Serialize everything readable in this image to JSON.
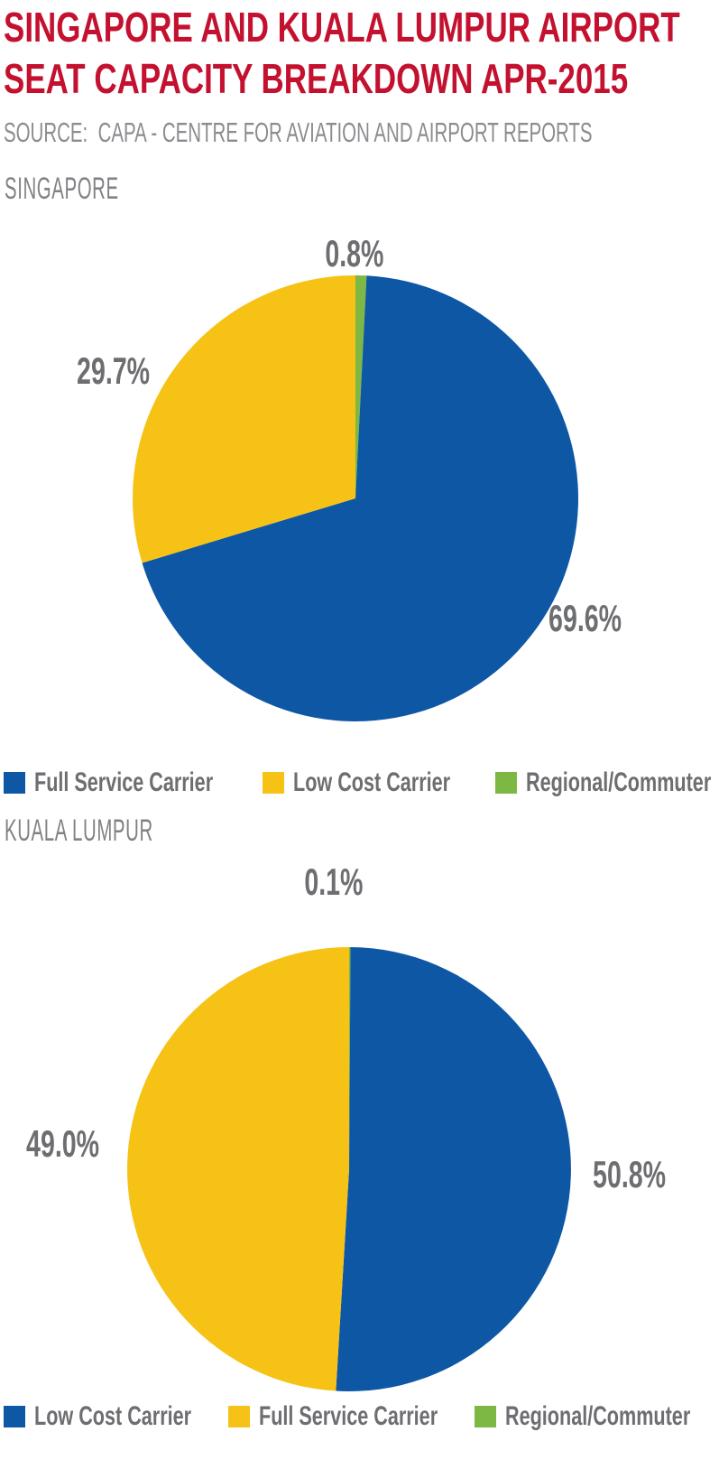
{
  "title": {
    "line1": "SINGAPORE AND KUALA LUMPUR AIRPORT",
    "line2": "SEAT CAPACITY BREAKDOWN APR-2015"
  },
  "source": "SOURCE:  CAPA - CENTRE FOR AVIATION AND AIRPORT REPORTS",
  "colors": {
    "title_red": "#c3112f",
    "blue": "#0d57a5",
    "yellow": "#f6c216",
    "green": "#7cb843",
    "label_gray": "#6d6e71",
    "muted_gray": "#808285"
  },
  "chart_data": [
    {
      "type": "pie",
      "section_label": "SINGAPORE",
      "start_angle_deg": 0,
      "direction": "clockwise",
      "slices": [
        {
          "label": "Regional/Commuter",
          "value": 0.8,
          "display": "0.8%",
          "color": "#7cb843"
        },
        {
          "label": "Full Service Carrier",
          "value": 69.6,
          "display": "69.6%",
          "color": "#0d57a5"
        },
        {
          "label": "Low Cost Carrier",
          "value": 29.7,
          "display": "29.7%",
          "color": "#f6c216"
        }
      ],
      "legend": [
        {
          "label": "Full Service Carrier",
          "color": "#0d57a5"
        },
        {
          "label": "Low Cost Carrier",
          "color": "#f6c216"
        },
        {
          "label": "Regional/Commuter",
          "color": "#7cb843"
        }
      ],
      "legend_position": "bottom"
    },
    {
      "type": "pie",
      "section_label": "KUALA LUMPUR",
      "start_angle_deg": 0,
      "direction": "clockwise",
      "slices": [
        {
          "label": "Regional/Commuter",
          "value": 0.1,
          "display": "0.1%",
          "color": "#7cb843"
        },
        {
          "label": "Low Cost Carrier",
          "value": 50.8,
          "display": "50.8%",
          "color": "#0d57a5"
        },
        {
          "label": "Full Service Carrier",
          "value": 49.0,
          "display": "49.0%",
          "color": "#f6c216"
        }
      ],
      "legend": [
        {
          "label": "Low Cost Carrier",
          "color": "#0d57a5"
        },
        {
          "label": "Full Service Carrier",
          "color": "#f6c216"
        },
        {
          "label": "Regional/Commuter",
          "color": "#7cb843"
        }
      ],
      "legend_position": "bottom"
    }
  ]
}
